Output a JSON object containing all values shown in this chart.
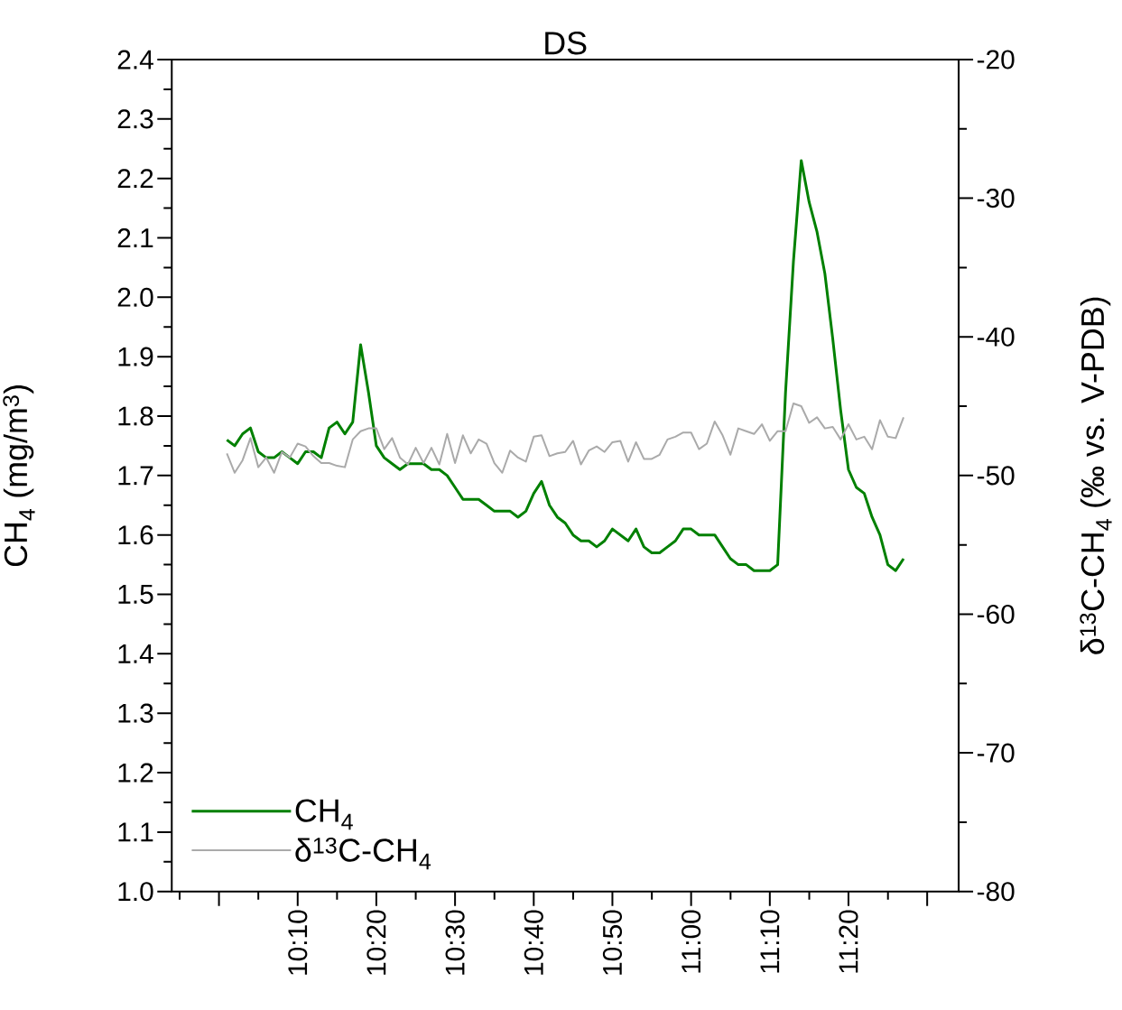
{
  "chart_data": {
    "type": "line",
    "title": "DS",
    "ylabel": "CH$_{4}$ (mg/m$^{3}$)",
    "y2label": "δ$^{13}$C-CH$_{4}$ (‰ vs. V-PDB)",
    "x": [
      10.0167,
      10.0333,
      10.05,
      10.0667,
      10.0833,
      10.1,
      10.1167,
      10.1333,
      10.15,
      10.1667,
      10.1833,
      10.2,
      10.2167,
      10.2333,
      10.25,
      10.2667,
      10.2833,
      10.3,
      10.3167,
      10.3333,
      10.35,
      10.3667,
      10.3833,
      10.4,
      10.4167,
      10.4333,
      10.45,
      10.4667,
      10.4833,
      10.5,
      10.5167,
      10.5333,
      10.55,
      10.5667,
      10.5833,
      10.6,
      10.6167,
      10.6333,
      10.65,
      10.6667,
      10.6833,
      10.7,
      10.7167,
      10.7333,
      10.75,
      10.7667,
      10.7833,
      10.8,
      10.8167,
      10.8333,
      10.85,
      10.8667,
      10.8833,
      10.9,
      10.9167,
      10.9333,
      10.95,
      10.9667,
      10.9833,
      11.0,
      11.0167,
      11.0333,
      11.05,
      11.0667,
      11.0833,
      11.1,
      11.1167,
      11.1333,
      11.15,
      11.1667,
      11.1833,
      11.2,
      11.2167,
      11.2333,
      11.25,
      11.2667,
      11.2833,
      11.3,
      11.3167,
      11.3333,
      11.35,
      11.3667,
      11.3833,
      11.4,
      11.4167,
      11.4333,
      11.45
    ],
    "series": [
      {
        "name": "CH$_{4}$",
        "color": "#008000",
        "values": [
          1.76,
          1.75,
          1.77,
          1.78,
          1.74,
          1.73,
          1.73,
          1.74,
          1.73,
          1.72,
          1.74,
          1.74,
          1.73,
          1.78,
          1.79,
          1.77,
          1.79,
          1.92,
          1.84,
          1.75,
          1.73,
          1.72,
          1.71,
          1.72,
          1.72,
          1.72,
          1.71,
          1.71,
          1.7,
          1.68,
          1.66,
          1.66,
          1.66,
          1.65,
          1.64,
          1.64,
          1.64,
          1.63,
          1.64,
          1.67,
          1.69,
          1.65,
          1.63,
          1.62,
          1.6,
          1.59,
          1.59,
          1.58,
          1.59,
          1.61,
          1.6,
          1.59,
          1.61,
          1.58,
          1.57,
          1.57,
          1.58,
          1.59,
          1.61,
          1.61,
          1.6,
          1.6,
          1.6,
          1.58,
          1.56,
          1.55,
          1.55,
          1.54,
          1.54,
          1.54,
          1.55,
          1.84,
          2.06,
          2.23,
          2.16,
          2.11,
          2.04,
          1.93,
          1.81,
          1.71,
          1.68,
          1.67,
          1.63,
          1.6,
          1.55,
          1.54,
          1.56
        ]
      },
      {
        "name": "δ$^{13}$C-CH$_{4}$",
        "color": "#aaaaaa",
        "axis": "y2",
        "values": [
          -48.4,
          -49.8,
          -48.9,
          -47.3,
          -49.4,
          -48.7,
          -49.8,
          -48.3,
          -48.7,
          -47.7,
          -47.9,
          -48.6,
          -49.1,
          -49.1,
          -49.3,
          -49.4,
          -47.4,
          -46.8,
          -46.6,
          -46.6,
          -48.1,
          -47.3,
          -48.7,
          -49.2,
          -48.0,
          -49.1,
          -48.0,
          -49.2,
          -47.0,
          -49.1,
          -47.1,
          -48.4,
          -47.4,
          -47.7,
          -49.1,
          -49.8,
          -48.2,
          -48.7,
          -49.0,
          -47.2,
          -47.1,
          -48.6,
          -48.4,
          -48.3,
          -47.5,
          -49.2,
          -48.2,
          -47.9,
          -48.3,
          -47.6,
          -47.5,
          -49.0,
          -47.6,
          -48.8,
          -48.8,
          -48.5,
          -47.4,
          -47.2,
          -46.9,
          -46.9,
          -48.1,
          -47.7,
          -46.1,
          -47.1,
          -48.5,
          -46.6,
          -46.8,
          -47.0,
          -46.3,
          -47.5,
          -46.8,
          -46.8,
          -44.8,
          -45.0,
          -46.2,
          -45.8,
          -46.6,
          -46.5,
          -47.4,
          -46.3,
          -47.4,
          -47.2,
          -48.1,
          -46.0,
          -47.2,
          -47.3,
          -45.8
        ]
      }
    ],
    "xlim": [
      9.9,
      11.5667
    ],
    "xticks": [
      {
        "value": 10.0,
        "label": null
      },
      {
        "value": 10.1667,
        "label": "10:10"
      },
      {
        "value": 10.3333,
        "label": "10:20"
      },
      {
        "value": 10.5,
        "label": "10:30"
      },
      {
        "value": 10.6667,
        "label": "10:40"
      },
      {
        "value": 10.8333,
        "label": "10:50"
      },
      {
        "value": 11.0,
        "label": "11:00"
      },
      {
        "value": 11.1667,
        "label": "11:10"
      },
      {
        "value": 11.3333,
        "label": "11:20"
      },
      {
        "value": 11.5,
        "label": null
      }
    ],
    "ylim": [
      1.0,
      2.4
    ],
    "yticks": [
      {
        "value": 1.0,
        "label": "1.0"
      },
      {
        "value": 1.1,
        "label": "1.1"
      },
      {
        "value": 1.2,
        "label": "1.2"
      },
      {
        "value": 1.3,
        "label": "1.3"
      },
      {
        "value": 1.4,
        "label": "1.4"
      },
      {
        "value": 1.5,
        "label": "1.5"
      },
      {
        "value": 1.6,
        "label": "1.6"
      },
      {
        "value": 1.7,
        "label": "1.7"
      },
      {
        "value": 1.8,
        "label": "1.8"
      },
      {
        "value": 1.9,
        "label": "1.9"
      },
      {
        "value": 2.0,
        "label": "2.0"
      },
      {
        "value": 2.1,
        "label": "2.1"
      },
      {
        "value": 2.2,
        "label": "2.2"
      },
      {
        "value": 2.3,
        "label": "2.3"
      },
      {
        "value": 2.4,
        "label": "2.4"
      }
    ],
    "y2lim": [
      -80,
      -20
    ],
    "y2ticks": [
      -80,
      -70,
      -60,
      -50,
      -40,
      -30,
      -20
    ],
    "legend": "bottom left",
    "grid": false,
    "line_style": "solid"
  }
}
